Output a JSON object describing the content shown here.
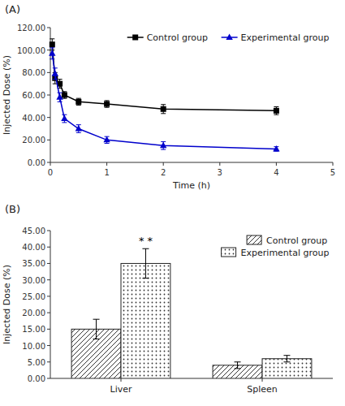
{
  "chart_data": [
    {
      "type": "line",
      "title": "(A)",
      "x_label": "Time (h)",
      "y_label": "Injected Dose (%)",
      "xlim": [
        0,
        5
      ],
      "ylim": [
        0,
        120
      ],
      "xticks": [
        0,
        1,
        2,
        3,
        4,
        5
      ],
      "yticks": [
        {
          "value": 0,
          "label": "0.00"
        },
        {
          "value": 20,
          "label": "20.00"
        },
        {
          "value": 40,
          "label": "40.00"
        },
        {
          "value": 60,
          "label": "60.00"
        },
        {
          "value": 80,
          "label": "80.00"
        },
        {
          "value": 100,
          "label": "100.00"
        },
        {
          "value": 120,
          "label": "120.00"
        }
      ],
      "x": [
        0.033,
        0.083,
        0.167,
        0.25,
        0.5,
        1.0,
        2.0,
        4.0
      ],
      "series": [
        {
          "name": "Control group",
          "color": "#000000",
          "marker": "square",
          "values": [
            105.0,
            75.0,
            70.0,
            60.0,
            54.0,
            52.0,
            47.5,
            46.0
          ],
          "errors": [
            5.0,
            5.0,
            4.0,
            3.0,
            3.0,
            3.0,
            4.0,
            3.5
          ]
        },
        {
          "name": "Experimental group",
          "color": "#0000cc",
          "marker": "triangle",
          "values": [
            97.0,
            79.0,
            58.0,
            39.0,
            30.0,
            20.0,
            15.0,
            12.0
          ],
          "errors": [
            5.0,
            5.0,
            4.0,
            3.5,
            3.5,
            3.0,
            3.5,
            2.0
          ]
        }
      ],
      "legend": "upper right"
    },
    {
      "type": "bar",
      "title": "(B)",
      "y_label": "Injected Dose (%)",
      "ylim": [
        0,
        45
      ],
      "yticks": [
        {
          "value": 0,
          "label": "0.00"
        },
        {
          "value": 5,
          "label": "5.00"
        },
        {
          "value": 10,
          "label": "10.00"
        },
        {
          "value": 15,
          "label": "15.00"
        },
        {
          "value": 20,
          "label": "20.00"
        },
        {
          "value": 25,
          "label": "25.00"
        },
        {
          "value": 30,
          "label": "30.00"
        },
        {
          "value": 35,
          "label": "35.00"
        },
        {
          "value": 40,
          "label": "40.00"
        },
        {
          "value": 45,
          "label": "45.00"
        }
      ],
      "categories": [
        "Liver",
        "Spleen"
      ],
      "series": [
        {
          "name": "Control group",
          "values": [
            15.0,
            4.0
          ],
          "errors": [
            3.0,
            1.0
          ]
        },
        {
          "name": "Experimental group",
          "values": [
            35.0,
            6.0
          ],
          "errors": [
            4.5,
            1.0
          ]
        }
      ],
      "annotations": [
        {
          "text": "* *",
          "category": "Liver",
          "series": "Experimental group"
        }
      ],
      "legend": "upper right"
    }
  ]
}
